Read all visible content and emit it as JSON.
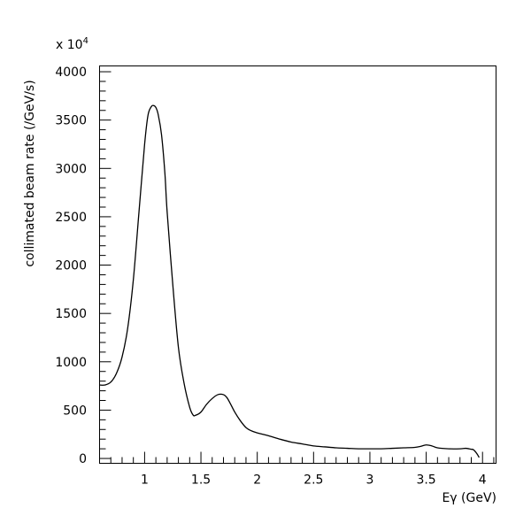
{
  "chart_data": {
    "type": "line",
    "title": "",
    "xlabel": "Eγ (GeV)",
    "ylabel": "collimated beam rate (/GeV/s)",
    "y_multiplier": "x 10",
    "y_multiplier_exp": "4",
    "xlim": [
      0.6,
      4.12
    ],
    "ylim": [
      -50,
      4060
    ],
    "grid": false,
    "legend": "none",
    "x_ticks": [
      1,
      1.5,
      2,
      2.5,
      3,
      3.5,
      4
    ],
    "x_tick_labels": [
      "1",
      "1.5",
      "2",
      "2.5",
      "3",
      "3.5",
      "4"
    ],
    "y_ticks": [
      0,
      500,
      1000,
      1500,
      2000,
      2500,
      3000,
      3500,
      4000
    ],
    "y_tick_labels": [
      "0",
      "500",
      "1000",
      "1500",
      "2000",
      "2500",
      "3000",
      "3500",
      "4000"
    ],
    "series": [
      {
        "x": [
          0.6,
          0.65,
          0.7,
          0.75,
          0.8,
          0.85,
          0.9,
          0.95,
          1.0,
          1.03,
          1.06,
          1.08,
          1.1,
          1.12,
          1.15,
          1.18,
          1.2,
          1.25,
          1.3,
          1.35,
          1.4,
          1.43,
          1.45,
          1.5,
          1.55,
          1.6,
          1.65,
          1.7,
          1.73,
          1.76,
          1.8,
          1.85,
          1.9,
          1.95,
          2.0,
          2.1,
          2.2,
          2.3,
          2.4,
          2.5,
          2.6,
          2.7,
          2.8,
          2.9,
          3.0,
          3.1,
          3.2,
          3.3,
          3.4,
          3.45,
          3.5,
          3.55,
          3.6,
          3.7,
          3.8,
          3.85,
          3.88,
          3.9,
          3.92,
          3.95,
          3.97
        ],
        "y": [
          760,
          760,
          790,
          880,
          1050,
          1350,
          1850,
          2550,
          3250,
          3550,
          3640,
          3650,
          3630,
          3560,
          3350,
          2950,
          2550,
          1800,
          1150,
          780,
          530,
          450,
          445,
          480,
          560,
          620,
          660,
          660,
          630,
          570,
          480,
          390,
          320,
          285,
          265,
          235,
          200,
          170,
          150,
          130,
          120,
          110,
          105,
          100,
          100,
          100,
          105,
          110,
          115,
          125,
          140,
          130,
          110,
          100,
          100,
          105,
          100,
          95,
          90,
          50,
          10
        ]
      }
    ]
  }
}
